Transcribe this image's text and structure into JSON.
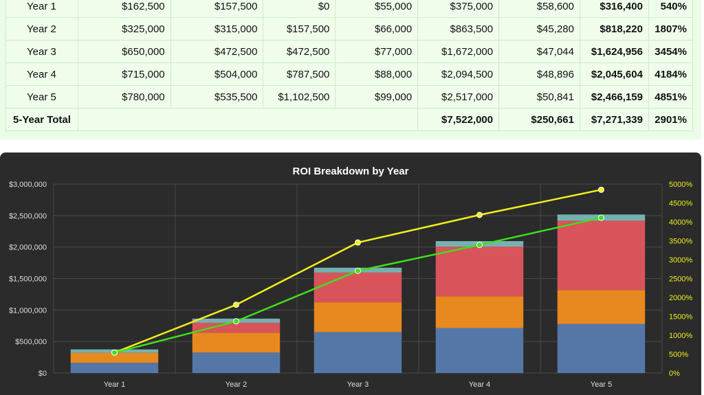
{
  "table": {
    "rows": [
      {
        "label": "Year 1",
        "c1": "$162,500",
        "c2": "$157,500",
        "c3": "$0",
        "c4": "$55,000",
        "c5": "$375,000",
        "c6": "$58,600",
        "c7": "$316,400",
        "c8": "540%"
      },
      {
        "label": "Year 2",
        "c1": "$325,000",
        "c2": "$315,000",
        "c3": "$157,500",
        "c4": "$66,000",
        "c5": "$863,500",
        "c6": "$45,280",
        "c7": "$818,220",
        "c8": "1807%"
      },
      {
        "label": "Year 3",
        "c1": "$650,000",
        "c2": "$472,500",
        "c3": "$472,500",
        "c4": "$77,000",
        "c5": "$1,672,000",
        "c6": "$47,044",
        "c7": "$1,624,956",
        "c8": "3454%"
      },
      {
        "label": "Year 4",
        "c1": "$715,000",
        "c2": "$504,000",
        "c3": "$787,500",
        "c4": "$88,000",
        "c5": "$2,094,500",
        "c6": "$48,896",
        "c7": "$2,045,604",
        "c8": "4184%"
      },
      {
        "label": "Year 5",
        "c1": "$780,000",
        "c2": "$535,500",
        "c3": "$1,102,500",
        "c4": "$99,000",
        "c5": "$2,517,000",
        "c6": "$50,841",
        "c7": "$2,466,159",
        "c8": "4851%"
      }
    ],
    "total": {
      "label": "5-Year Total",
      "c5": "$7,522,000",
      "c6": "$250,661",
      "c7": "$7,271,339",
      "c8": "2901%"
    }
  },
  "chart_data": {
    "type": "bar",
    "title": "ROI Breakdown by Year",
    "categories": [
      "Year 1",
      "Year 2",
      "Year 3",
      "Year 4",
      "Year 5"
    ],
    "stacked": true,
    "series": [
      {
        "values": [
          162500,
          325000,
          650000,
          715000,
          780000
        ],
        "color": "#5577a8"
      },
      {
        "values": [
          157500,
          315000,
          472500,
          504000,
          535500
        ],
        "color": "#e8891f"
      },
      {
        "values": [
          0,
          157500,
          472500,
          787500,
          1102500
        ],
        "color": "#d9545a"
      },
      {
        "values": [
          55000,
          66000,
          77000,
          88000,
          99000
        ],
        "color": "#76b1b1"
      }
    ],
    "lines": [
      {
        "values": [
          540,
          1807,
          3454,
          4184,
          4851
        ],
        "color": "#f2ee1e",
        "axis": "right"
      },
      {
        "values": [
          540,
          1370,
          2705,
          3390,
          4110
        ],
        "color": "#3fe01c",
        "axis": "right"
      }
    ],
    "ylim": [
      0,
      3000000
    ],
    "yticks": [
      "$0",
      "$500,000",
      "$1,000,000",
      "$1,500,000",
      "$2,000,000",
      "$2,500,000",
      "$3,000,000"
    ],
    "y2lim": [
      0,
      5000
    ],
    "y2ticks": [
      "0%",
      "500%",
      "1000%",
      "1500%",
      "2000%",
      "2500%",
      "3000%",
      "3500%",
      "4000%",
      "4500%",
      "5000%"
    ],
    "grid": true,
    "colors": {
      "background": "#2b2b2b",
      "grid": "#4a4a4a",
      "axis_text": "#dddddd",
      "right_axis_text": "#f2ee1e"
    }
  }
}
